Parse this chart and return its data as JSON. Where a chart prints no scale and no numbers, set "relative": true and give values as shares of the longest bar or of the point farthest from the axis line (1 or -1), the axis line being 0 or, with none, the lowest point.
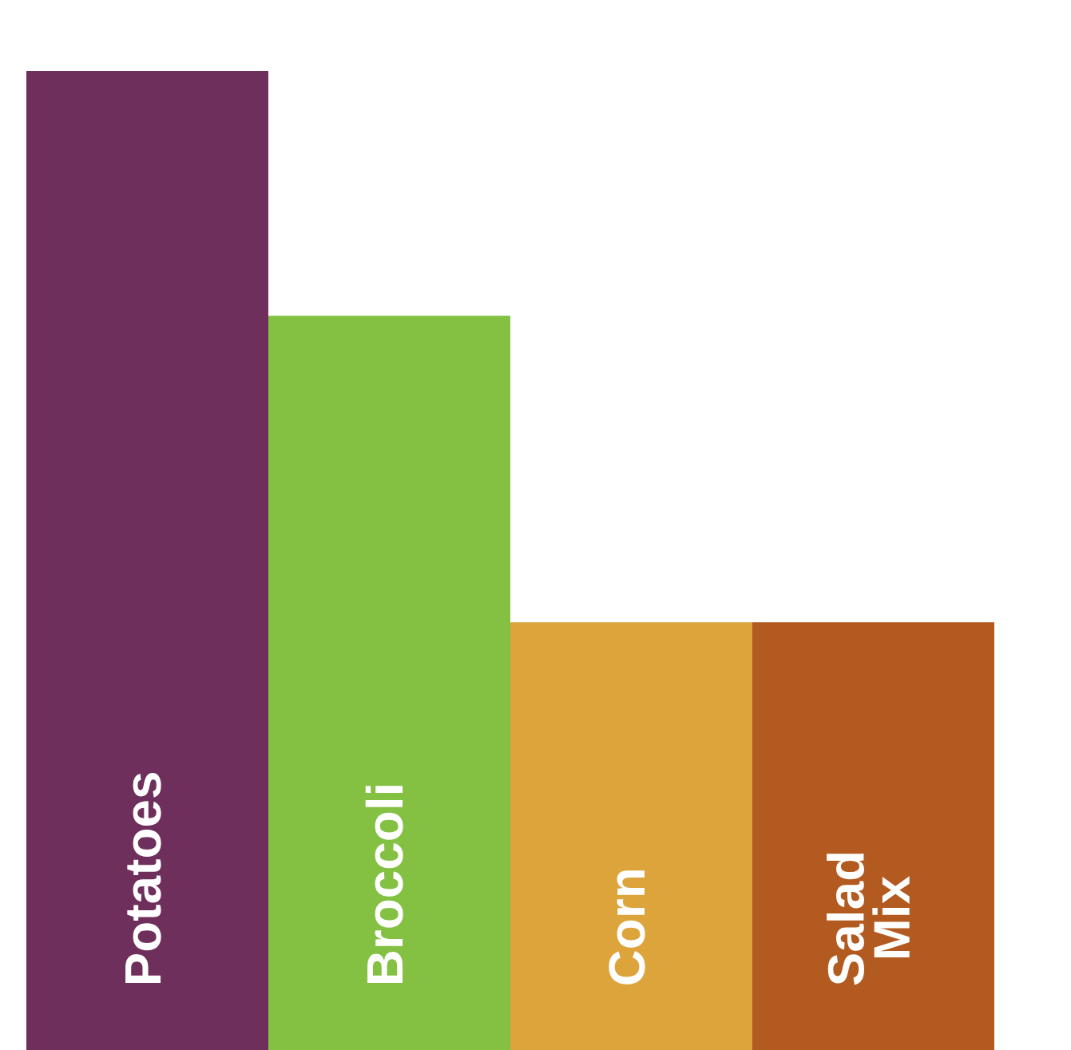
{
  "chart_data": {
    "type": "bar",
    "relative": true,
    "categories": [
      "Potatoes",
      "Broccoli",
      "Corn",
      "Salad\nMix"
    ],
    "values": [
      1,
      0.75,
      0.437,
      0.437
    ],
    "colors": [
      "#6f2f5c",
      "#84c143",
      "#dda43c",
      "#b35a20"
    ]
  }
}
